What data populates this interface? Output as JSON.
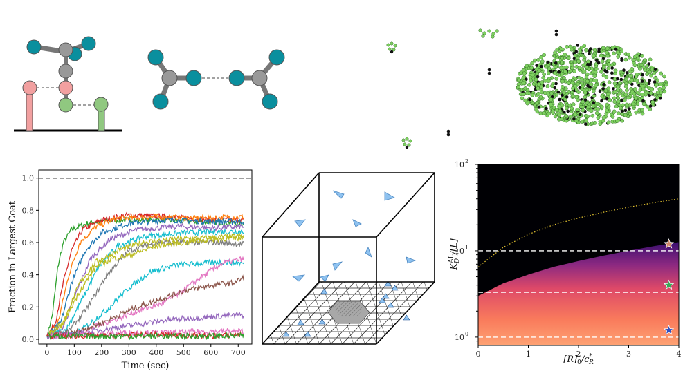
{
  "chart_data": [
    {
      "type": "line",
      "xlabel": "Time (sec)",
      "ylabel": "Fraction in Largest Coat",
      "xlim": [
        -30,
        750
      ],
      "ylim": [
        -0.03,
        1.05
      ],
      "x_ticks": [
        "0",
        "100",
        "200",
        "300",
        "400",
        "500",
        "600",
        "700"
      ],
      "y_ticks": [
        "0.0",
        "0.2",
        "0.4",
        "0.6",
        "0.8",
        "1.0"
      ],
      "reference_line": {
        "y": 1.0,
        "style": "dashed",
        "color": "#000000"
      },
      "grid": false,
      "series": [
        {
          "color": "#2ca02c",
          "points": [
            [
              0,
              0.02
            ],
            [
              20,
              0.15
            ],
            [
              40,
              0.45
            ],
            [
              60,
              0.6
            ],
            [
              90,
              0.68
            ],
            [
              150,
              0.72
            ],
            [
              250,
              0.74
            ],
            [
              400,
              0.74
            ],
            [
              550,
              0.73
            ],
            [
              720,
              0.72
            ]
          ]
        },
        {
          "color": "#d62728",
          "points": [
            [
              0,
              0.02
            ],
            [
              30,
              0.1
            ],
            [
              60,
              0.35
            ],
            [
              90,
              0.55
            ],
            [
              130,
              0.68
            ],
            [
              200,
              0.74
            ],
            [
              300,
              0.77
            ],
            [
              450,
              0.76
            ],
            [
              600,
              0.74
            ],
            [
              720,
              0.74
            ]
          ]
        },
        {
          "color": "#ff7f0e",
          "points": [
            [
              0,
              0.02
            ],
            [
              40,
              0.1
            ],
            [
              80,
              0.4
            ],
            [
              120,
              0.6
            ],
            [
              180,
              0.7
            ],
            [
              260,
              0.75
            ],
            [
              400,
              0.76
            ],
            [
              550,
              0.75
            ],
            [
              720,
              0.76
            ]
          ]
        },
        {
          "color": "#1f77b4",
          "points": [
            [
              0,
              0.02
            ],
            [
              50,
              0.1
            ],
            [
              90,
              0.35
            ],
            [
              140,
              0.55
            ],
            [
              200,
              0.66
            ],
            [
              300,
              0.72
            ],
            [
              450,
              0.74
            ],
            [
              600,
              0.73
            ],
            [
              720,
              0.73
            ]
          ]
        },
        {
          "color": "#9467bd",
          "points": [
            [
              0,
              0.02
            ],
            [
              60,
              0.08
            ],
            [
              110,
              0.3
            ],
            [
              160,
              0.5
            ],
            [
              230,
              0.62
            ],
            [
              330,
              0.68
            ],
            [
              480,
              0.7
            ],
            [
              620,
              0.69
            ],
            [
              720,
              0.7
            ]
          ]
        },
        {
          "color": "#17becf",
          "points": [
            [
              0,
              0.02
            ],
            [
              70,
              0.06
            ],
            [
              130,
              0.25
            ],
            [
              190,
              0.45
            ],
            [
              260,
              0.58
            ],
            [
              360,
              0.64
            ],
            [
              500,
              0.66
            ],
            [
              720,
              0.67
            ]
          ]
        },
        {
          "color": "#bcbd22",
          "points": [
            [
              0,
              0.02
            ],
            [
              60,
              0.1
            ],
            [
              120,
              0.35
            ],
            [
              180,
              0.48
            ],
            [
              260,
              0.55
            ],
            [
              350,
              0.6
            ],
            [
              460,
              0.62
            ],
            [
              600,
              0.63
            ],
            [
              720,
              0.64
            ]
          ]
        },
        {
          "color": "#7f7f7f",
          "points": [
            [
              0,
              0.02
            ],
            [
              80,
              0.05
            ],
            [
              150,
              0.2
            ],
            [
              220,
              0.4
            ],
            [
              300,
              0.55
            ],
            [
              400,
              0.6
            ],
            [
              520,
              0.6
            ],
            [
              640,
              0.6
            ],
            [
              720,
              0.59
            ]
          ]
        },
        {
          "color": "#17becf",
          "points": [
            [
              0,
              0.02
            ],
            [
              100,
              0.03
            ],
            [
              160,
              0.1
            ],
            [
              230,
              0.2
            ],
            [
              300,
              0.32
            ],
            [
              380,
              0.42
            ],
            [
              470,
              0.46
            ],
            [
              560,
              0.47
            ],
            [
              650,
              0.48
            ],
            [
              720,
              0.47
            ]
          ]
        },
        {
          "color": "#e377c2",
          "points": [
            [
              0,
              0.02
            ],
            [
              100,
              0.03
            ],
            [
              180,
              0.08
            ],
            [
              260,
              0.13
            ],
            [
              340,
              0.18
            ],
            [
              420,
              0.22
            ],
            [
              480,
              0.28
            ],
            [
              560,
              0.38
            ],
            [
              640,
              0.47
            ],
            [
              720,
              0.5
            ]
          ]
        },
        {
          "color": "#8c564b",
          "points": [
            [
              0,
              0.02
            ],
            [
              100,
              0.04
            ],
            [
              200,
              0.1
            ],
            [
              300,
              0.18
            ],
            [
              400,
              0.24
            ],
            [
              500,
              0.3
            ],
            [
              560,
              0.32
            ],
            [
              620,
              0.34
            ],
            [
              680,
              0.35
            ],
            [
              720,
              0.38
            ]
          ]
        },
        {
          "color": "#bcbd22",
          "points": [
            [
              0,
              0.02
            ],
            [
              60,
              0.1
            ],
            [
              120,
              0.3
            ],
            [
              180,
              0.45
            ],
            [
              240,
              0.5
            ],
            [
              300,
              0.52
            ],
            [
              400,
              0.58
            ],
            [
              500,
              0.6
            ],
            [
              600,
              0.62
            ],
            [
              720,
              0.63
            ]
          ]
        },
        {
          "color": "#9467bd",
          "points": [
            [
              0,
              0.02
            ],
            [
              120,
              0.03
            ],
            [
              200,
              0.06
            ],
            [
              280,
              0.08
            ],
            [
              360,
              0.1
            ],
            [
              440,
              0.12
            ],
            [
              520,
              0.13
            ],
            [
              600,
              0.14
            ],
            [
              720,
              0.15
            ]
          ]
        },
        {
          "color": "#e377c2",
          "points": [
            [
              0,
              0.02
            ],
            [
              150,
              0.03
            ],
            [
              300,
              0.04
            ],
            [
              450,
              0.04
            ],
            [
              600,
              0.05
            ],
            [
              720,
              0.05
            ]
          ]
        },
        {
          "color": "#d62728",
          "points": [
            [
              0,
              0.02
            ],
            [
              200,
              0.02
            ],
            [
              400,
              0.03
            ],
            [
              600,
              0.02
            ],
            [
              720,
              0.03
            ]
          ]
        },
        {
          "color": "#2ca02c",
          "points": [
            [
              0,
              0.02
            ],
            [
              240,
              0.02
            ],
            [
              480,
              0.02
            ],
            [
              720,
              0.02
            ]
          ]
        }
      ]
    },
    {
      "type": "heatmap",
      "xlabel": "[R]0 / c*R",
      "ylabel": "K_D^AL / [L]",
      "x_scale": "linear",
      "y_scale": "log",
      "xlim": [
        0,
        4
      ],
      "ylim": [
        0.8,
        100
      ],
      "x_ticks": [
        "0",
        "1",
        "2",
        "3",
        "4"
      ],
      "y_ticks": [
        "10^0",
        "10^1",
        "10^2"
      ],
      "colormap": [
        "#000004",
        "#3b0f70",
        "#8c2981",
        "#de4968",
        "#fe9f6d",
        "#fcfdbf"
      ],
      "boundary_points": [
        [
          0,
          3.0
        ],
        [
          0.5,
          4.2
        ],
        [
          1,
          5.3
        ],
        [
          1.5,
          6.5
        ],
        [
          2,
          7.6
        ],
        [
          2.5,
          8.8
        ],
        [
          3,
          10.0
        ],
        [
          3.5,
          11.3
        ],
        [
          4,
          12.6
        ]
      ],
      "dotted_curve": {
        "color": "#e0c030",
        "points": [
          [
            0,
            6.5
          ],
          [
            0.5,
            11
          ],
          [
            1,
            15.5
          ],
          [
            1.5,
            20
          ],
          [
            2,
            24
          ],
          [
            2.5,
            28
          ],
          [
            3,
            32
          ],
          [
            3.5,
            36
          ],
          [
            4,
            40
          ]
        ]
      },
      "dashed_levels": [
        10,
        3.3,
        1.0
      ],
      "markers": [
        {
          "x": 3.8,
          "y": 12,
          "color": "#d08a6a",
          "shape": "star"
        },
        {
          "x": 3.8,
          "y": 4,
          "color": "#3aa858",
          "shape": "star"
        },
        {
          "x": 3.8,
          "y": 1.2,
          "color": "#3050c0",
          "shape": "star"
        }
      ]
    }
  ],
  "colors": {
    "pink": "#f2a0a0",
    "green_bead": "#90c880",
    "teal": "#0a8f9e",
    "gray": "#999999",
    "triangle": "#8ec2f0",
    "hex_patch": "#a8a8a8",
    "cluster_green": "#7ed060"
  }
}
